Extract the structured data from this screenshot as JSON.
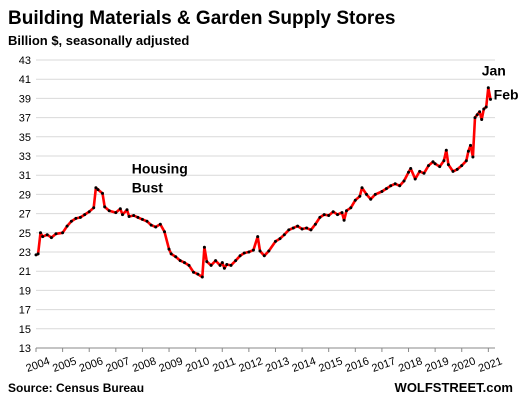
{
  "chart_data": {
    "type": "line",
    "title": "Building Materials & Garden Supply Stores",
    "subtitle": "Billion $, seasonally adjusted",
    "xlabel": "",
    "ylabel": "",
    "xlim": [
      2004,
      2021.25
    ],
    "ylim": [
      13,
      43
    ],
    "y_ticks": [
      13,
      15,
      17,
      19,
      21,
      23,
      25,
      27,
      29,
      31,
      33,
      35,
      37,
      39,
      41,
      43
    ],
    "x_ticks": [
      "2004",
      "2005",
      "2006",
      "2007",
      "2008",
      "2009",
      "2010",
      "2011",
      "2012",
      "2013",
      "2014",
      "2015",
      "2016",
      "2017",
      "2018",
      "2019",
      "2020",
      "2021"
    ],
    "grid": "horizontal",
    "line_color": "#ff0000",
    "marker_color": "#000000",
    "series": [
      {
        "values": [
          [
            2004.0,
            22.7
          ],
          [
            2004.08,
            22.8
          ],
          [
            2004.17,
            25.0
          ],
          [
            2004.25,
            24.6
          ],
          [
            2004.42,
            24.8
          ],
          [
            2004.58,
            24.5
          ],
          [
            2004.75,
            24.9
          ],
          [
            2005.0,
            25.0
          ],
          [
            2005.17,
            25.7
          ],
          [
            2005.33,
            26.2
          ],
          [
            2005.5,
            26.5
          ],
          [
            2005.67,
            26.6
          ],
          [
            2005.83,
            26.9
          ],
          [
            2006.0,
            27.2
          ],
          [
            2006.17,
            27.6
          ],
          [
            2006.25,
            29.7
          ],
          [
            2006.33,
            29.5
          ],
          [
            2006.5,
            29.1
          ],
          [
            2006.58,
            27.7
          ],
          [
            2006.75,
            27.3
          ],
          [
            2007.0,
            27.1
          ],
          [
            2007.17,
            27.5
          ],
          [
            2007.25,
            26.9
          ],
          [
            2007.42,
            27.4
          ],
          [
            2007.5,
            26.7
          ],
          [
            2007.67,
            26.8
          ],
          [
            2007.83,
            26.6
          ],
          [
            2008.0,
            26.4
          ],
          [
            2008.17,
            26.2
          ],
          [
            2008.33,
            25.8
          ],
          [
            2008.5,
            25.6
          ],
          [
            2008.67,
            25.9
          ],
          [
            2008.83,
            25.1
          ],
          [
            2009.0,
            23.3
          ],
          [
            2009.08,
            22.8
          ],
          [
            2009.25,
            22.5
          ],
          [
            2009.42,
            22.1
          ],
          [
            2009.58,
            21.9
          ],
          [
            2009.75,
            21.6
          ],
          [
            2009.92,
            20.9
          ],
          [
            2010.08,
            20.7
          ],
          [
            2010.25,
            20.4
          ],
          [
            2010.33,
            23.5
          ],
          [
            2010.42,
            22.0
          ],
          [
            2010.58,
            21.6
          ],
          [
            2010.75,
            22.1
          ],
          [
            2010.92,
            21.6
          ],
          [
            2011.0,
            21.9
          ],
          [
            2011.08,
            21.3
          ],
          [
            2011.17,
            21.7
          ],
          [
            2011.33,
            21.6
          ],
          [
            2011.5,
            22.1
          ],
          [
            2011.67,
            22.6
          ],
          [
            2011.83,
            22.9
          ],
          [
            2012.0,
            23.0
          ],
          [
            2012.17,
            23.2
          ],
          [
            2012.33,
            24.6
          ],
          [
            2012.42,
            23.1
          ],
          [
            2012.58,
            22.6
          ],
          [
            2012.75,
            23.1
          ],
          [
            2013.0,
            24.1
          ],
          [
            2013.17,
            24.4
          ],
          [
            2013.33,
            24.8
          ],
          [
            2013.5,
            25.3
          ],
          [
            2013.67,
            25.5
          ],
          [
            2013.83,
            25.7
          ],
          [
            2014.0,
            25.4
          ],
          [
            2014.17,
            25.5
          ],
          [
            2014.33,
            25.3
          ],
          [
            2014.5,
            25.9
          ],
          [
            2014.67,
            26.6
          ],
          [
            2014.83,
            26.9
          ],
          [
            2015.0,
            26.8
          ],
          [
            2015.17,
            27.2
          ],
          [
            2015.33,
            26.9
          ],
          [
            2015.5,
            27.1
          ],
          [
            2015.58,
            26.3
          ],
          [
            2015.67,
            27.3
          ],
          [
            2015.83,
            27.6
          ],
          [
            2016.0,
            28.4
          ],
          [
            2016.17,
            28.8
          ],
          [
            2016.25,
            29.7
          ],
          [
            2016.42,
            29.0
          ],
          [
            2016.58,
            28.5
          ],
          [
            2016.75,
            29.0
          ],
          [
            2017.0,
            29.3
          ],
          [
            2017.17,
            29.6
          ],
          [
            2017.33,
            29.9
          ],
          [
            2017.5,
            30.1
          ],
          [
            2017.67,
            29.9
          ],
          [
            2017.83,
            30.4
          ],
          [
            2018.0,
            31.3
          ],
          [
            2018.08,
            31.7
          ],
          [
            2018.25,
            30.6
          ],
          [
            2018.42,
            31.4
          ],
          [
            2018.58,
            31.2
          ],
          [
            2018.75,
            32.0
          ],
          [
            2018.92,
            32.4
          ],
          [
            2019.0,
            32.2
          ],
          [
            2019.17,
            31.9
          ],
          [
            2019.33,
            32.5
          ],
          [
            2019.42,
            33.6
          ],
          [
            2019.5,
            32.1
          ],
          [
            2019.67,
            31.4
          ],
          [
            2019.83,
            31.6
          ],
          [
            2020.0,
            32.0
          ],
          [
            2020.17,
            32.5
          ],
          [
            2020.25,
            33.5
          ],
          [
            2020.33,
            34.1
          ],
          [
            2020.42,
            32.9
          ],
          [
            2020.5,
            37.0
          ],
          [
            2020.58,
            37.3
          ],
          [
            2020.67,
            37.6
          ],
          [
            2020.75,
            36.8
          ],
          [
            2020.83,
            37.9
          ],
          [
            2020.92,
            38.1
          ],
          [
            2021.0,
            40.1
          ],
          [
            2021.08,
            38.9
          ]
        ]
      }
    ],
    "annotations": [
      {
        "line1": "Housing",
        "line2": "Bust",
        "x": 2007.6,
        "y": 31.2
      },
      {
        "line1": "Jan",
        "line2": "",
        "x": 2020.75,
        "y": 41.4
      },
      {
        "line1": "Feb",
        "line2": "",
        "x": 2021.2,
        "y": 38.9
      }
    ],
    "source": "Source: Census Bureau",
    "brand": "WOLFSTREET.com"
  }
}
